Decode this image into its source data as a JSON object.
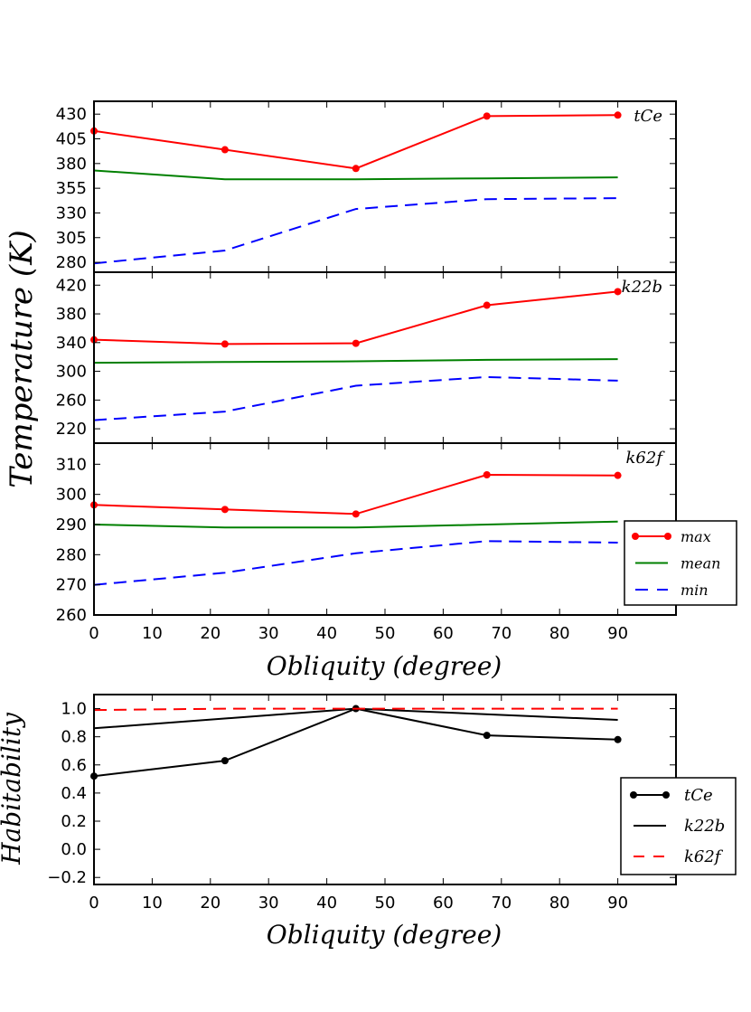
{
  "chart_data": [
    {
      "type": "line",
      "panel": "temperature",
      "ylabel": "Temperature (K)",
      "xlabel": "Obliquity (degree)",
      "xlim": [
        0,
        100
      ],
      "xticks": [
        0,
        10,
        20,
        30,
        40,
        50,
        60,
        70,
        80,
        90
      ],
      "legend": {
        "placement": "right",
        "entries": [
          "max",
          "mean",
          "min"
        ]
      },
      "subplots": [
        {
          "name": "tCe",
          "ylim": [
            270,
            443
          ],
          "yticks": [
            280,
            305,
            330,
            355,
            380,
            405,
            430
          ],
          "series": [
            {
              "name": "max",
              "x": [
                0,
                22.5,
                45,
                67.5,
                90
              ],
              "y": [
                413,
                394,
                375,
                428,
                429
              ]
            },
            {
              "name": "mean",
              "x": [
                0,
                22.5,
                45,
                67.5,
                90
              ],
              "y": [
                373,
                364,
                364,
                365,
                366
              ]
            },
            {
              "name": "min",
              "x": [
                0,
                22.5,
                45,
                67.5,
                90
              ],
              "y": [
                279,
                292,
                334,
                344,
                345
              ]
            }
          ]
        },
        {
          "name": "k22b",
          "ylim": [
            200,
            438
          ],
          "yticks": [
            220,
            260,
            300,
            340,
            380,
            420
          ],
          "series": [
            {
              "name": "max",
              "x": [
                0,
                22.5,
                45,
                67.5,
                90
              ],
              "y": [
                344,
                338,
                339,
                392,
                411
              ]
            },
            {
              "name": "mean",
              "x": [
                0,
                22.5,
                45,
                67.5,
                90
              ],
              "y": [
                312,
                313,
                314,
                316,
                317
              ]
            },
            {
              "name": "min",
              "x": [
                0,
                22.5,
                45,
                67.5,
                90
              ],
              "y": [
                232,
                244,
                280,
                292,
                287
              ]
            }
          ]
        },
        {
          "name": "k62f",
          "ylim": [
            260,
            317
          ],
          "yticks": [
            260,
            270,
            280,
            290,
            300,
            310
          ],
          "series": [
            {
              "name": "max",
              "x": [
                0,
                22.5,
                45,
                67.5,
                90
              ],
              "y": [
                296.5,
                295,
                293.5,
                306.5,
                306.3
              ]
            },
            {
              "name": "mean",
              "x": [
                0,
                22.5,
                45,
                67.5,
                90
              ],
              "y": [
                290,
                289,
                289,
                290,
                291
              ]
            },
            {
              "name": "min",
              "x": [
                0,
                22.5,
                45,
                67.5,
                90
              ],
              "y": [
                270,
                274,
                280.5,
                284.5,
                284
              ]
            }
          ]
        }
      ]
    },
    {
      "type": "line",
      "panel": "habitability",
      "ylabel": "Habitability",
      "xlabel": "Obliquity (degree)",
      "xlim": [
        0,
        100
      ],
      "ylim": [
        -0.25,
        1.1
      ],
      "xticks": [
        0,
        10,
        20,
        30,
        40,
        50,
        60,
        70,
        80,
        90
      ],
      "yticks": [
        -0.2,
        0.0,
        0.2,
        0.4,
        0.6,
        0.8,
        1.0
      ],
      "ytick_labels": [
        "−0.2",
        "0.0",
        "0.2",
        "0.4",
        "0.6",
        "0.8",
        "1.0"
      ],
      "legend": {
        "placement": "right",
        "entries": [
          "tCe",
          "k22b",
          "k62f"
        ]
      },
      "series": [
        {
          "name": "tCe",
          "x": [
            0,
            22.5,
            45,
            67.5,
            90
          ],
          "y": [
            0.52,
            0.63,
            1.0,
            0.81,
            0.78
          ]
        },
        {
          "name": "k22b",
          "x": [
            0,
            45,
            90
          ],
          "y": [
            0.86,
            1.0,
            0.92
          ]
        },
        {
          "name": "k62f",
          "x": [
            0,
            22.5,
            45,
            67.5,
            90
          ],
          "y": [
            0.99,
            1.0,
            1.0,
            1.0,
            1.0
          ]
        }
      ]
    }
  ],
  "colors": {
    "max": "#ff0000",
    "mean": "#008000",
    "min": "#0000ff",
    "tCe": "#000000",
    "k22b": "#000000",
    "k62f": "#ff0000"
  }
}
